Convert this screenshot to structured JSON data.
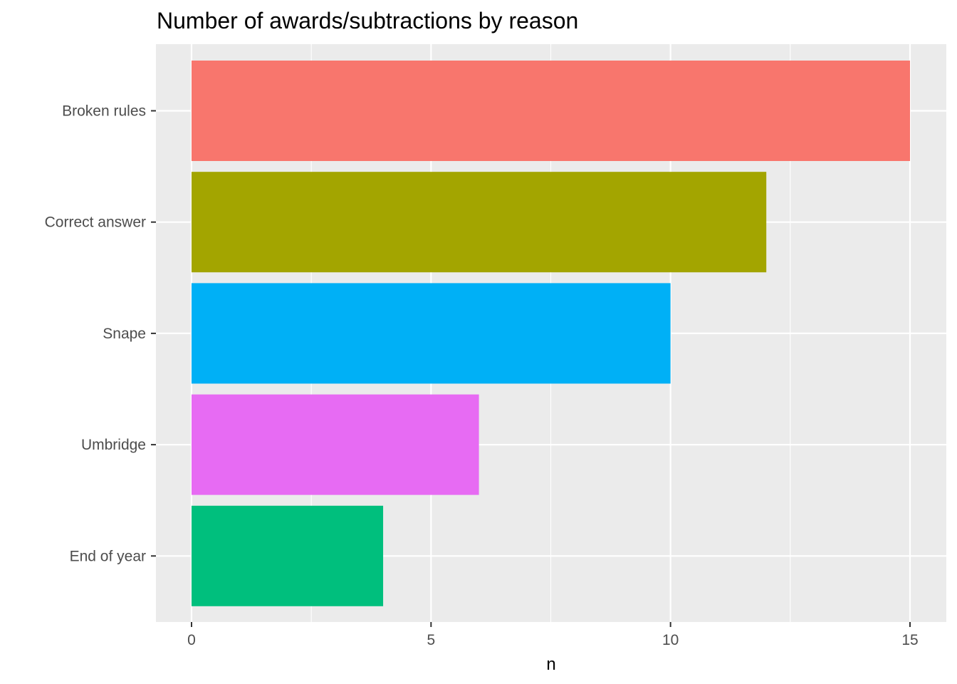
{
  "chart_data": {
    "type": "bar",
    "orientation": "horizontal",
    "title": "Number of awards/subtractions by reason",
    "xlabel": "n",
    "ylabel": "",
    "categories": [
      "Broken rules",
      "Correct answer",
      "Snape",
      "Umbridge",
      "End of year"
    ],
    "values": [
      15,
      12,
      10,
      6,
      4
    ],
    "colors": [
      "#F8766D",
      "#A3A500",
      "#00B0F6",
      "#E76BF3",
      "#00BF7D"
    ],
    "xlim": [
      0,
      15
    ],
    "x_ticks": [
      0,
      5,
      10,
      15
    ],
    "grid": true,
    "legend": "none",
    "panel_background": "#EBEBEB",
    "grid_color": "#FFFFFF"
  }
}
